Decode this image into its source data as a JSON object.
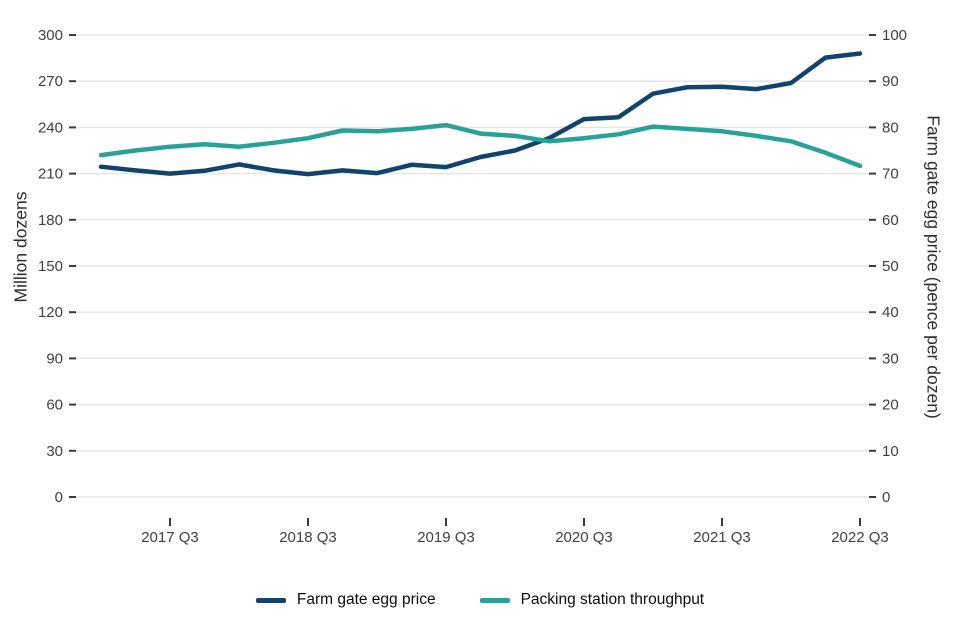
{
  "chart_data": {
    "type": "line",
    "title": "",
    "x_quarters": [
      "2017 Q1",
      "2017 Q2",
      "2017 Q3",
      "2017 Q4",
      "2018 Q1",
      "2018 Q2",
      "2018 Q3",
      "2018 Q4",
      "2019 Q1",
      "2019 Q2",
      "2019 Q3",
      "2019 Q4",
      "2020 Q1",
      "2020 Q2",
      "2020 Q3",
      "2020 Q4",
      "2021 Q1",
      "2021 Q2",
      "2021 Q3",
      "2021 Q4",
      "2022 Q1",
      "2022 Q2",
      "2022 Q3"
    ],
    "x_tick_labels": [
      "2017 Q3",
      "2018 Q3",
      "2019 Q3",
      "2020 Q3",
      "2021 Q3",
      "2022 Q3"
    ],
    "left_axis": {
      "label": "Million dozens",
      "min": 0,
      "max": 300,
      "step": 30,
      "tick_labels": [
        "0",
        "30",
        "60",
        "90",
        "120",
        "150",
        "180",
        "210",
        "240",
        "270",
        "300"
      ]
    },
    "right_axis": {
      "label": "Farm gate egg price (pence per dozen)",
      "min": 0,
      "max": 100,
      "step": 10,
      "tick_labels": [
        "0",
        "10",
        "20",
        "30",
        "40",
        "50",
        "60",
        "70",
        "80",
        "90",
        "100"
      ]
    },
    "series": [
      {
        "name": "Farm gate egg price",
        "axis": "right",
        "color": "#12436D",
        "values": [
          71.5,
          70.7,
          70.0,
          70.6,
          72.0,
          70.7,
          69.9,
          70.7,
          70.1,
          71.9,
          71.4,
          73.6,
          75.0,
          77.7,
          81.8,
          82.2,
          87.3,
          88.7,
          88.8,
          88.3,
          89.6,
          95.1,
          96.0
        ]
      },
      {
        "name": "Packing station throughput",
        "axis": "left",
        "color": "#28A197",
        "values": [
          222,
          225,
          227.5,
          229,
          227.5,
          230,
          233,
          238,
          237.5,
          239,
          241.5,
          236,
          234.5,
          231,
          233,
          235.5,
          240.5,
          239,
          237.5,
          234.5,
          231,
          223.5,
          215
        ]
      }
    ],
    "legend_position": "bottom",
    "grid": "horizontal"
  },
  "colors": {
    "navy": "#12436D",
    "teal": "#28A197",
    "gridline": "#e6e6e6",
    "tick_mark": "#3b3b3b",
    "tick_text": "#414042"
  }
}
